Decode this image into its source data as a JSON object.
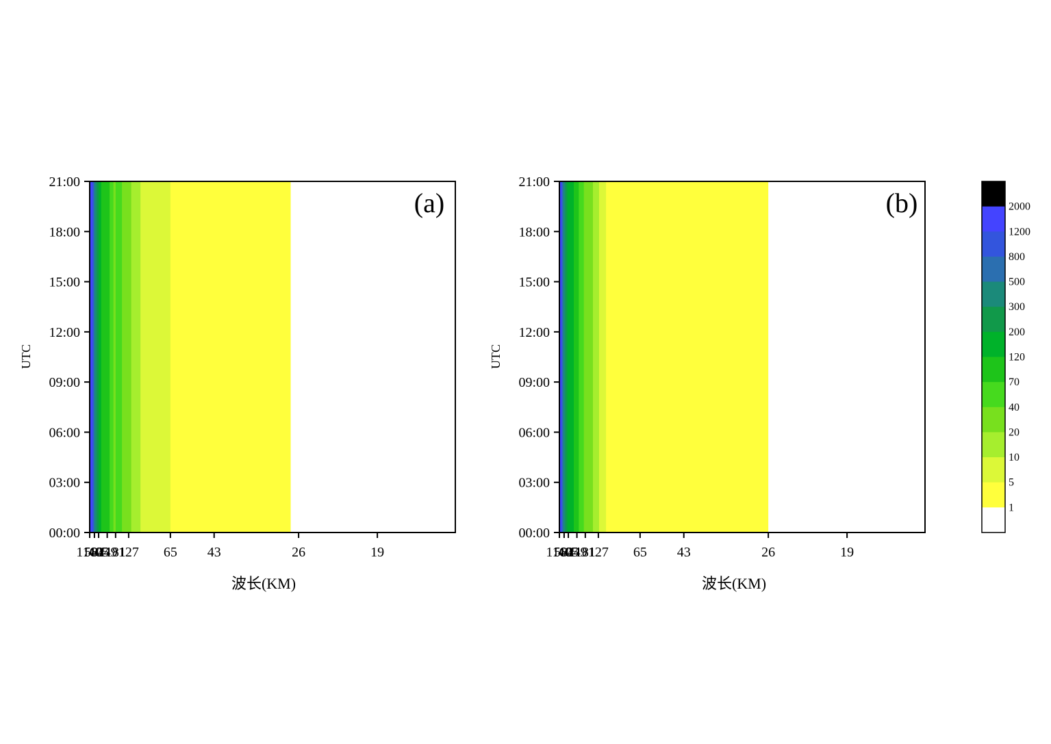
{
  "chart_data": [
    {
      "type": "heatmap",
      "panel_label": "(a)",
      "xlabel": "波长(KM)",
      "ylabel": "UTC",
      "x_ticks": [
        "1160",
        "584",
        "405",
        "249",
        "181",
        "127",
        "65",
        "43",
        "26",
        "19"
      ],
      "y_ticks": [
        "00:00",
        "03:00",
        "06:00",
        "09:00",
        "12:00",
        "15:00",
        "18:00",
        "21:00"
      ],
      "xlim_km": [
        1160,
        15
      ],
      "ylim": [
        "00:00",
        "21:00"
      ],
      "x_scale": "wavenumber (1/wavelength)",
      "bands_by_wavelength_km": [
        {
          "from": 1160,
          "to": 1100,
          "level": "2000"
        },
        {
          "from": 1100,
          "to": 750,
          "level": "1200"
        },
        {
          "from": 750,
          "to": 640,
          "level": "800"
        },
        {
          "from": 640,
          "to": 584,
          "level": "500"
        },
        {
          "from": 584,
          "to": 480,
          "level": "300"
        },
        {
          "from": 480,
          "to": 405,
          "level": "200"
        },
        {
          "from": 405,
          "to": 340,
          "level": "120"
        },
        {
          "from": 340,
          "to": 225,
          "level": "70"
        },
        {
          "from": 225,
          "to": 195,
          "level": "40"
        },
        {
          "from": 195,
          "to": 181,
          "level": "20"
        },
        {
          "from": 181,
          "to": 150,
          "level": "40"
        },
        {
          "from": 150,
          "to": 120,
          "level": "20"
        },
        {
          "from": 120,
          "to": 100,
          "level": "10"
        },
        {
          "from": 100,
          "to": 65,
          "level": "5"
        },
        {
          "from": 65,
          "to": 27,
          "level": "1"
        },
        {
          "from": 27,
          "to": 15,
          "level": "0"
        }
      ]
    },
    {
      "type": "heatmap",
      "panel_label": "(b)",
      "xlabel": "波长(KM)",
      "ylabel": "UTC",
      "x_ticks": [
        "1160",
        "584",
        "405",
        "249",
        "181",
        "127",
        "65",
        "43",
        "26",
        "19"
      ],
      "y_ticks": [
        "00:00",
        "03:00",
        "06:00",
        "09:00",
        "12:00",
        "15:00",
        "18:00",
        "21:00"
      ],
      "xlim_km": [
        1160,
        15
      ],
      "ylim": [
        "00:00",
        "21:00"
      ],
      "x_scale": "wavenumber (1/wavelength)",
      "bands_by_wavelength_km": [
        {
          "from": 1160,
          "to": 840,
          "level": "1200"
        },
        {
          "from": 840,
          "to": 720,
          "level": "800"
        },
        {
          "from": 720,
          "to": 640,
          "level": "500"
        },
        {
          "from": 640,
          "to": 520,
          "level": "300"
        },
        {
          "from": 520,
          "to": 440,
          "level": "200"
        },
        {
          "from": 440,
          "to": 290,
          "level": "120"
        },
        {
          "from": 290,
          "to": 230,
          "level": "70"
        },
        {
          "from": 230,
          "to": 190,
          "level": "40"
        },
        {
          "from": 190,
          "to": 145,
          "level": "20"
        },
        {
          "from": 145,
          "to": 125,
          "level": "10"
        },
        {
          "from": 125,
          "to": 108,
          "level": "5"
        },
        {
          "from": 108,
          "to": 26,
          "level": "1"
        },
        {
          "from": 26,
          "to": 15,
          "level": "0"
        }
      ]
    }
  ],
  "colorbar": {
    "labels": [
      "2000",
      "1200",
      "800",
      "500",
      "300",
      "200",
      "120",
      "70",
      "40",
      "20",
      "10",
      "5",
      "1"
    ],
    "colors": [
      "#000000",
      "#4444ff",
      "#3355dd",
      "#2b6fb0",
      "#1b8a7a",
      "#11994a",
      "#00b22a",
      "#1ec41a",
      "#46da1e",
      "#78e01e",
      "#a6ee2e",
      "#dcf838",
      "#ffff3c",
      "#ffffff"
    ]
  },
  "level_colors": {
    "2000": "#000000",
    "1200": "#4444ff",
    "800": "#3355dd",
    "500": "#2b6fb0",
    "300": "#1b8a7a",
    "200": "#11994a",
    "120": "#00b22a",
    "70": "#1ec41a",
    "40": "#46da1e",
    "20": "#78e01e",
    "10": "#a6ee2e",
    "5": "#dcf838",
    "1": "#ffff3c",
    "0": "#ffffff"
  }
}
